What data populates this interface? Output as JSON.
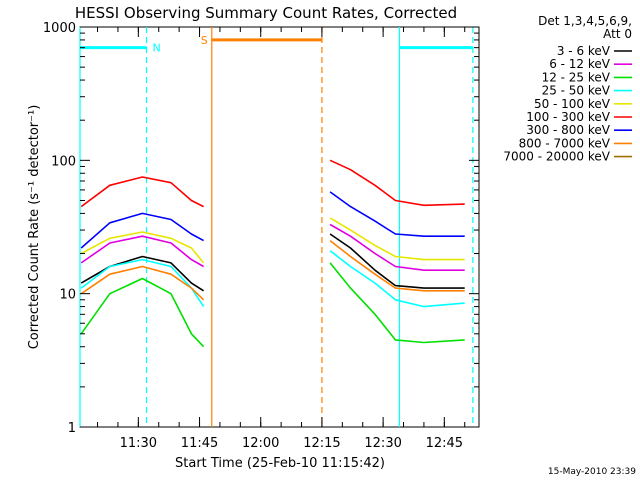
{
  "chart_data": {
    "type": "line",
    "title": "HESSI Observing Summary Count Rates, Corrected",
    "xlabel": "Start Time (25-Feb-10 11:15:42)",
    "ylabel": "Corrected Count Rate (s⁻¹ detector⁻¹)",
    "yscale": "log",
    "ylim": [
      1,
      1000
    ],
    "xlim": [
      "11:15:42",
      "12:53:30"
    ],
    "x_ticks": [
      "11:30",
      "11:45",
      "12:00",
      "12:15",
      "12:30",
      "12:45"
    ],
    "y_ticks": [
      "1",
      "10",
      "100",
      "1000"
    ],
    "grid": false,
    "legend_title": "Det 1,3,4,5,6,9,",
    "legend_subtitle": "Att 0",
    "legend_position": "right",
    "series": [
      {
        "name": "3 - 6 keV",
        "color": "#000000",
        "points": [
          [
            "11:16",
            12
          ],
          [
            "11:23",
            16
          ],
          [
            "11:31",
            19
          ],
          [
            "11:38",
            17
          ],
          [
            "11:43",
            12
          ],
          [
            "11:46",
            10.5
          ],
          [
            "12:17",
            28
          ],
          [
            "12:22",
            22
          ],
          [
            "12:28",
            15
          ],
          [
            "12:33",
            11.5
          ],
          [
            "12:40",
            11
          ],
          [
            "12:50",
            11
          ]
        ]
      },
      {
        "name": "6 - 12 keV",
        "color": "#e000e0",
        "points": [
          [
            "11:16",
            17
          ],
          [
            "11:23",
            24
          ],
          [
            "11:31",
            27
          ],
          [
            "11:38",
            24
          ],
          [
            "11:43",
            18
          ],
          [
            "11:46",
            16
          ],
          [
            "12:17",
            33
          ],
          [
            "12:22",
            27
          ],
          [
            "12:28",
            20
          ],
          [
            "12:33",
            16
          ],
          [
            "12:40",
            15
          ],
          [
            "12:50",
            15
          ]
        ]
      },
      {
        "name": "12 - 25 keV",
        "color": "#00e000",
        "points": [
          [
            "11:16",
            5
          ],
          [
            "11:23",
            10
          ],
          [
            "11:31",
            13
          ],
          [
            "11:38",
            10
          ],
          [
            "11:43",
            5
          ],
          [
            "11:46",
            4
          ],
          [
            "12:17",
            17
          ],
          [
            "12:22",
            11
          ],
          [
            "12:28",
            7
          ],
          [
            "12:33",
            4.5
          ],
          [
            "12:40",
            4.3
          ],
          [
            "12:50",
            4.5
          ]
        ]
      },
      {
        "name": "25 - 50 keV",
        "color": "#00ffff",
        "points": [
          [
            "11:16",
            11
          ],
          [
            "11:23",
            16
          ],
          [
            "11:31",
            18
          ],
          [
            "11:38",
            16
          ],
          [
            "11:43",
            11
          ],
          [
            "11:46",
            8
          ],
          [
            "12:17",
            21
          ],
          [
            "12:22",
            16
          ],
          [
            "12:28",
            12
          ],
          [
            "12:33",
            9
          ],
          [
            "12:40",
            8
          ],
          [
            "12:50",
            8.5
          ]
        ]
      },
      {
        "name": "50 - 100 keV",
        "color": "#e6e600",
        "points": [
          [
            "11:16",
            20
          ],
          [
            "11:23",
            26
          ],
          [
            "11:31",
            29
          ],
          [
            "11:38",
            26
          ],
          [
            "11:43",
            22
          ],
          [
            "11:46",
            17
          ],
          [
            "12:17",
            37
          ],
          [
            "12:22",
            30
          ],
          [
            "12:28",
            23
          ],
          [
            "12:33",
            19
          ],
          [
            "12:40",
            18
          ],
          [
            "12:50",
            18
          ]
        ]
      },
      {
        "name": "100 - 300 keV",
        "color": "#ff0000",
        "points": [
          [
            "11:16",
            45
          ],
          [
            "11:23",
            65
          ],
          [
            "11:31",
            75
          ],
          [
            "11:38",
            68
          ],
          [
            "11:43",
            50
          ],
          [
            "11:46",
            45
          ],
          [
            "12:17",
            100
          ],
          [
            "12:22",
            85
          ],
          [
            "12:28",
            65
          ],
          [
            "12:33",
            50
          ],
          [
            "12:40",
            46
          ],
          [
            "12:50",
            47
          ]
        ]
      },
      {
        "name": "300 - 800 keV",
        "color": "#0000ff",
        "points": [
          [
            "11:16",
            22
          ],
          [
            "11:23",
            34
          ],
          [
            "11:31",
            40
          ],
          [
            "11:38",
            36
          ],
          [
            "11:43",
            28
          ],
          [
            "11:46",
            25
          ],
          [
            "12:17",
            58
          ],
          [
            "12:22",
            45
          ],
          [
            "12:28",
            35
          ],
          [
            "12:33",
            28
          ],
          [
            "12:40",
            27
          ],
          [
            "12:50",
            27
          ]
        ]
      },
      {
        "name": "800 - 7000 keV",
        "color": "#ff8000",
        "points": [
          [
            "11:16",
            10
          ],
          [
            "11:23",
            14
          ],
          [
            "11:31",
            16
          ],
          [
            "11:38",
            14
          ],
          [
            "11:43",
            11
          ],
          [
            "11:46",
            9
          ],
          [
            "12:17",
            25
          ],
          [
            "12:22",
            19
          ],
          [
            "12:28",
            14
          ],
          [
            "12:33",
            11
          ],
          [
            "12:40",
            10.5
          ],
          [
            "12:50",
            10.5
          ]
        ]
      },
      {
        "name": "7000 - 20000 keV",
        "color": "#a07000",
        "points": []
      }
    ],
    "annotations": {
      "labels": [
        {
          "text": "N",
          "color": "#00ffff"
        },
        {
          "text": "S",
          "color": "#ff8000"
        }
      ],
      "intervals": [
        {
          "type": "night",
          "color": "#00ffff",
          "start": "11:15:42",
          "end": "11:32",
          "level": 700
        },
        {
          "type": "night",
          "color": "#00ffff",
          "start": "12:34",
          "end": "12:52",
          "level": 700
        },
        {
          "type": "saa",
          "color": "#ff8000",
          "start": "11:48",
          "end": "12:15",
          "level": 800
        }
      ],
      "markers": [
        {
          "time": "11:15:42",
          "color": "#00ffff",
          "style": "solid"
        },
        {
          "time": "11:32",
          "color": "#00ffff",
          "style": "dashed"
        },
        {
          "time": "11:48",
          "color": "#ff8000",
          "style": "solid"
        },
        {
          "time": "12:15",
          "color": "#ff8000",
          "style": "dashed"
        },
        {
          "time": "12:34",
          "color": "#00ffff",
          "style": "solid"
        },
        {
          "time": "12:52",
          "color": "#00ffff",
          "style": "dashed"
        }
      ]
    },
    "footer_timestamp": "15-May-2010 23:39"
  }
}
